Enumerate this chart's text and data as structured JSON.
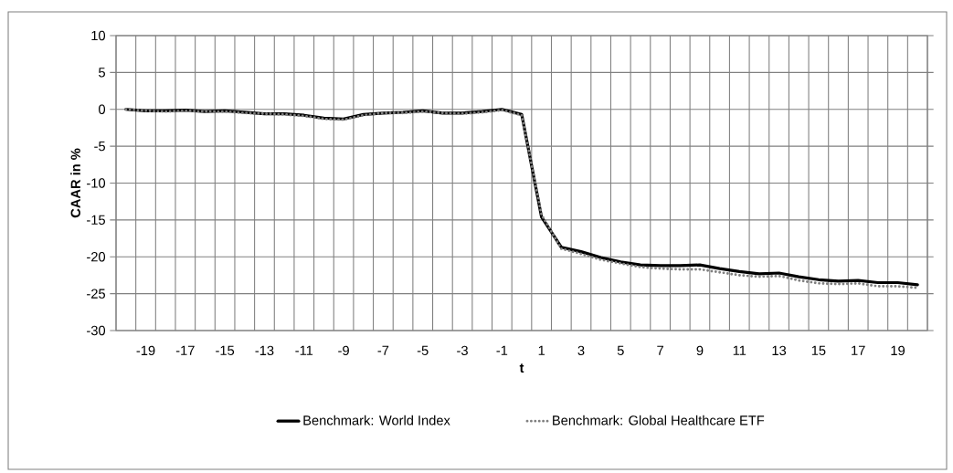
{
  "chart_data": {
    "type": "line",
    "xlabel": "t",
    "ylabel": "CAAR in %",
    "categories": [
      null,
      "-19",
      null,
      "-17",
      null,
      "-15",
      null,
      "-13",
      null,
      "-11",
      null,
      "-9",
      null,
      "-7",
      null,
      "-5",
      null,
      "-3",
      null,
      "-1",
      null,
      "1",
      null,
      "3",
      null,
      "5",
      null,
      "7",
      null,
      "9",
      null,
      "11",
      null,
      "13",
      null,
      "15",
      null,
      "17",
      null,
      "19",
      null
    ],
    "series": [
      {
        "name": "Benchmark: World Index",
        "color": "#000000",
        "line_style": "solid",
        "values": [
          0,
          -0.2,
          -0.2,
          -0.1,
          -0.3,
          -0.2,
          -0.4,
          -0.6,
          -0.6,
          -0.8,
          -1.2,
          -1.3,
          -0.7,
          -0.5,
          -0.4,
          -0.2,
          -0.5,
          -0.5,
          -0.3,
          0,
          -0.7,
          -14.6,
          -18.7,
          -19.3,
          -20.1,
          -20.7,
          -21.1,
          -21.2,
          -21.2,
          -21.1,
          -21.6,
          -22.0,
          -22.3,
          -22.2,
          -22.7,
          -23.1,
          -23.3,
          -23.2,
          -23.5,
          -23.5,
          -23.8
        ]
      },
      {
        "name": "Benchmark: Global Healthcare ETF",
        "color": "#808080",
        "line_style": "dotted",
        "values": [
          0,
          -0.2,
          -0.3,
          -0.2,
          -0.3,
          -0.3,
          -0.5,
          -0.6,
          -0.7,
          -0.9,
          -1.3,
          -1.4,
          -0.8,
          -0.5,
          -0.5,
          -0.3,
          -0.5,
          -0.6,
          -0.4,
          -0.1,
          -0.8,
          -14.3,
          -18.9,
          -19.6,
          -20.4,
          -20.9,
          -21.4,
          -21.6,
          -21.7,
          -21.7,
          -22.1,
          -22.5,
          -22.7,
          -22.6,
          -23.2,
          -23.6,
          -23.7,
          -23.6,
          -24.0,
          -24.0,
          -24.2
        ]
      }
    ],
    "ylim": [
      -30,
      10
    ],
    "yticks": [
      -30,
      -25,
      -20,
      -15,
      -10,
      -5,
      0,
      5,
      10
    ],
    "grid": true,
    "legend": "bottom",
    "marker": "none"
  }
}
